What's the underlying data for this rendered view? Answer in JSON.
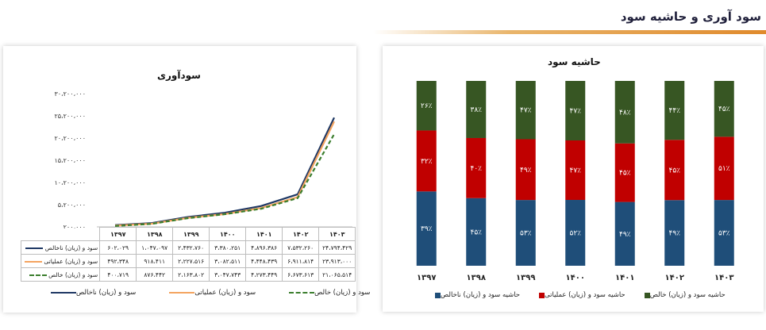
{
  "page": {
    "title": "سود آوری و حاشیه سود"
  },
  "colors": {
    "net": "#1f3864",
    "operating": "#f4a460",
    "gross": "#3a7d2c",
    "bar_net": "#1f4e79",
    "bar_operating": "#c00000",
    "bar_gross": "#375623"
  },
  "chart_data": [
    {
      "type": "line",
      "title": "سودآوری",
      "categories": [
        "۱۳۹۷",
        "۱۳۹۸",
        "۱۳۹۹",
        "۱۴۰۰",
        "۱۴۰۱",
        "۱۴۰۲",
        "۱۴۰۳"
      ],
      "ylim": [
        200000,
        30200000
      ],
      "yticks": [
        200000,
        5200000,
        10200000,
        15200000,
        20200000,
        25200000,
        30200000
      ],
      "ytick_labels": [
        "۲۰۰،۰۰۰",
        "۵،۲۰۰،۰۰۰",
        "۱۰،۲۰۰،۰۰۰",
        "۱۵،۲۰۰،۰۰۰",
        "۲۰،۲۰۰،۰۰۰",
        "۲۵،۲۰۰،۰۰۰",
        "۳۰،۲۰۰،۰۰۰"
      ],
      "series": [
        {
          "name": "سود و (زیان) ناخالص",
          "key": "net",
          "values": [
            602029,
            1047097,
            2432760,
            3380251,
            4896386,
            7532260,
            24794429
          ],
          "labels": [
            "۶۰۲،۰۲۹",
            "۱،۰۴۷،۰۹۷",
            "۲،۴۳۲،۷۶۰",
            "۳،۳۸۰،۲۵۱",
            "۴،۸۹۶،۳۸۶",
            "۷،۵۳۲،۲۶۰",
            "۲۴،۷۹۴،۴۲۹"
          ]
        },
        {
          "name": "سود و (زیان) عملیاتی",
          "key": "operating",
          "values": [
            492348,
            918411,
            2227516,
            3082511,
            4448439,
            6911814,
            23913000
          ],
          "labels": [
            "۴۹۲،۳۴۸",
            "۹۱۸،۴۱۱",
            "۲،۲۲۷،۵۱۶",
            "۳،۰۸۲،۵۱۱",
            "۴،۴۴۸،۴۳۹",
            "۶،۹۱۱،۸۱۴",
            "۲۳،۹۱۳،۰۰۰"
          ]
        },
        {
          "name": "سود و (زیان) خالص",
          "key": "gross",
          "values": [
            400719,
            876442,
            2163802,
            3047743,
            4273449,
            6673613,
            21065514
          ],
          "labels": [
            "۴۰۰،۷۱۹",
            "۸۷۶،۴۴۲",
            "۲،۱۶۳،۸۰۲",
            "۳،۰۴۷،۷۴۳",
            "۴،۲۷۳،۴۴۹",
            "۶،۶۷۳،۶۱۳",
            "۲۱،۰۶۵،۵۱۴"
          ]
        }
      ]
    },
    {
      "type": "bar",
      "stacked": true,
      "title": "حاشیه سود",
      "categories": [
        "۱۳۹۷",
        "۱۳۹۸",
        "۱۳۹۹",
        "۱۴۰۰",
        "۱۴۰۱",
        "۱۴۰۲",
        "۱۴۰۳"
      ],
      "series": [
        {
          "name": "حاشیه سود و (زیان) ناخالص",
          "key": "bar_net",
          "values": [
            39,
            45,
            53,
            52,
            49,
            49,
            53
          ],
          "labels": [
            "۳۹٪",
            "۴۵٪",
            "۵۳٪",
            "۵۲٪",
            "۴۹٪",
            "۴۹٪",
            "۵۳٪"
          ]
        },
        {
          "name": "حاشیه سود و (زیان) عملیاتی",
          "key": "bar_operating",
          "values": [
            32,
            40,
            49,
            47,
            45,
            45,
            51
          ],
          "labels": [
            "۳۲٪",
            "۴۰٪",
            "۴۹٪",
            "۴۷٪",
            "۴۵٪",
            "۴۵٪",
            "۵۱٪"
          ]
        },
        {
          "name": "حاشیه سود و (زیان) خالص",
          "key": "bar_gross",
          "values": [
            26,
            38,
            47,
            47,
            48,
            44,
            45
          ],
          "labels": [
            "۲۶٪",
            "۳۸٪",
            "۴۷٪",
            "۴۷٪",
            "۴۸٪",
            "۴۴٪",
            "۴۵٪"
          ]
        }
      ]
    }
  ]
}
